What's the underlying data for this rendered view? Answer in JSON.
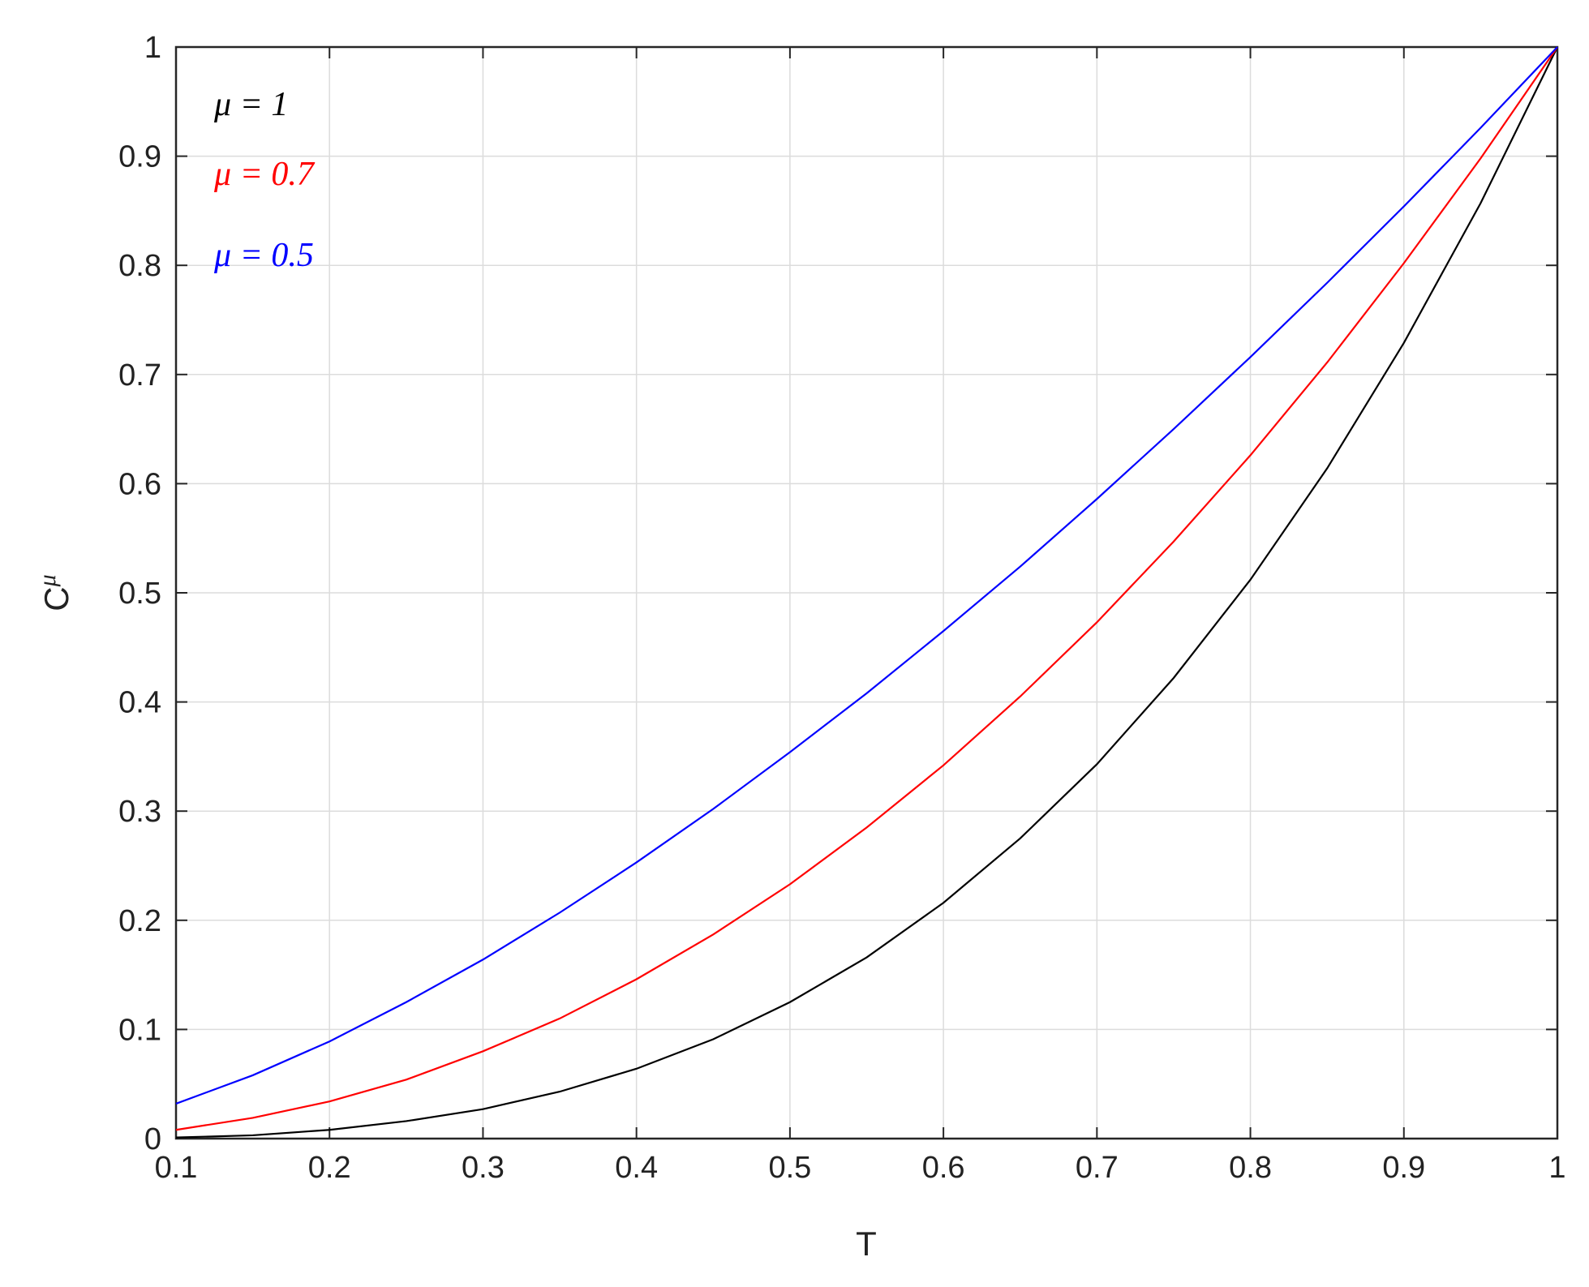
{
  "chart_data": {
    "type": "line",
    "x_label": "T",
    "y_label": {
      "base": "C",
      "superscript": "μ"
    },
    "x": [
      0.1,
      0.15,
      0.2,
      0.25,
      0.3,
      0.35,
      0.4,
      0.45,
      0.5,
      0.55,
      0.6,
      0.65,
      0.7,
      0.75,
      0.8,
      0.85,
      0.9,
      0.95,
      1
    ],
    "series": [
      {
        "name": "μ = 1",
        "color": "#000000",
        "values": [
          0.001,
          0.003,
          0.008,
          0.016,
          0.027,
          0.043,
          0.064,
          0.091,
          0.125,
          0.166,
          0.216,
          0.275,
          0.343,
          0.422,
          0.512,
          0.614,
          0.729,
          0.857,
          1
        ]
      },
      {
        "name": "μ = 0.7",
        "color": "#ff0000",
        "values": [
          0.008,
          0.019,
          0.034,
          0.054,
          0.08,
          0.11,
          0.146,
          0.187,
          0.233,
          0.285,
          0.342,
          0.405,
          0.473,
          0.547,
          0.626,
          0.711,
          0.802,
          0.898,
          1
        ]
      },
      {
        "name": "μ = 0.5",
        "color": "#0000ff",
        "values": [
          0.032,
          0.058,
          0.089,
          0.125,
          0.164,
          0.207,
          0.253,
          0.302,
          0.354,
          0.408,
          0.465,
          0.524,
          0.586,
          0.65,
          0.716,
          0.784,
          0.854,
          0.926,
          1
        ]
      }
    ],
    "xlim": [
      0.1,
      1
    ],
    "ylim": [
      0,
      1
    ],
    "xticks": [
      0.1,
      0.2,
      0.3,
      0.4,
      0.5,
      0.6,
      0.7,
      0.8,
      0.9,
      1
    ],
    "yticks": [
      0,
      0.1,
      0.2,
      0.3,
      0.4,
      0.5,
      0.6,
      0.7,
      0.8,
      0.9,
      1
    ],
    "grid": true
  }
}
